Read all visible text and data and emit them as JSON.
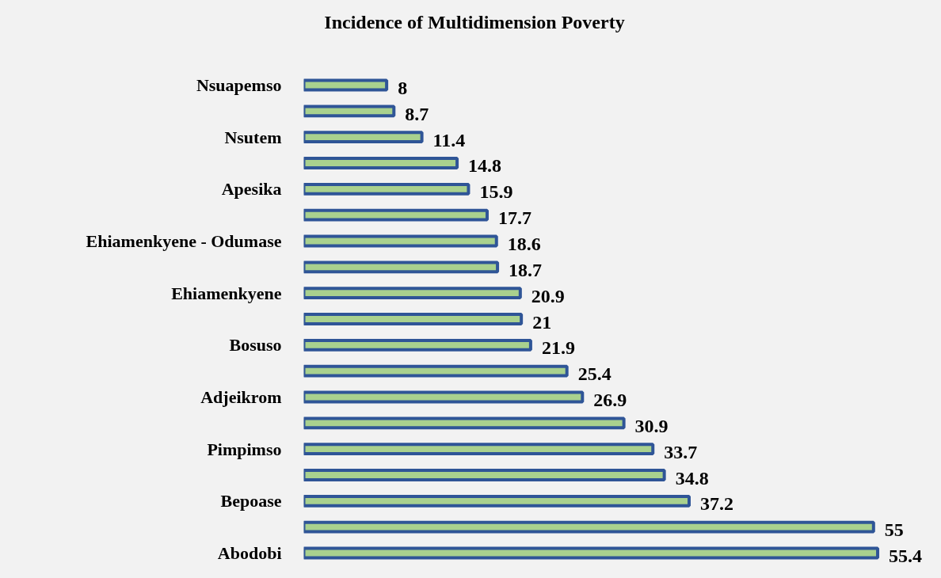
{
  "chart_data": {
    "type": "bar",
    "orientation": "horizontal",
    "title": "Incidence of Multidimension Poverty",
    "categories": [
      "Nsuapemso",
      null,
      "Nsutem",
      null,
      "Apesika",
      null,
      "Ehiamenkyene - Odumase",
      null,
      "Ehiamenkyene",
      null,
      "Bosuso",
      null,
      "Adjeikrom",
      null,
      "Pimpimso",
      null,
      "Bepoase",
      null,
      "Abodobi"
    ],
    "values": [
      8,
      8.7,
      11.4,
      14.8,
      15.9,
      17.7,
      18.6,
      18.7,
      20.9,
      21,
      21.9,
      25.4,
      26.9,
      30.9,
      33.7,
      34.8,
      37.2,
      55,
      55.4
    ],
    "color": "#a9d18e",
    "tick_labels": "y",
    "data_labels": true,
    "grid": false
  }
}
